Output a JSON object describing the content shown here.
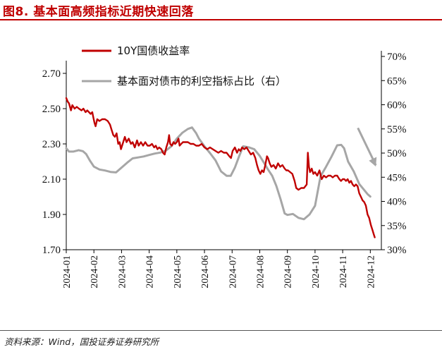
{
  "figure": {
    "title": "图8. 基本面高频指标近期快速回落",
    "source": "资料来源：Wind，国投证券证券研究所"
  },
  "colors": {
    "red": "#c00000",
    "gray": "#a6a6a6",
    "axis": "#000000"
  },
  "chart_data": {
    "type": "line",
    "xlabel": "",
    "ylabel": "",
    "x_categories": [
      "2024-01",
      "2024-02",
      "2024-03",
      "2024-04",
      "2024-05",
      "2024-06",
      "2024-07",
      "2024-08",
      "2024-09",
      "2024-10",
      "2024-11",
      "2024-12"
    ],
    "x_range": [
      0,
      11.4
    ],
    "y_left": {
      "range": [
        1.7,
        2.7
      ],
      "ticks": [
        "1.70",
        "1.90",
        "2.10",
        "2.30",
        "2.50",
        "2.70"
      ],
      "tick_values": [
        1.7,
        1.9,
        2.1,
        2.3,
        2.5,
        2.7
      ]
    },
    "y_right": {
      "range": [
        30,
        70
      ],
      "ticks": [
        "30%",
        "35%",
        "40%",
        "45%",
        "50%",
        "55%",
        "60%",
        "65%",
        "70%"
      ],
      "tick_values": [
        30,
        35,
        40,
        45,
        50,
        55,
        60,
        65,
        70
      ]
    },
    "legend": {
      "placement": "top-left"
    },
    "series": [
      {
        "name": "10Y国债收益率",
        "axis": "left",
        "color": "#c00000",
        "points": [
          [
            0.0,
            2.56
          ],
          [
            0.05,
            2.54
          ],
          [
            0.1,
            2.53
          ],
          [
            0.17,
            2.49
          ],
          [
            0.22,
            2.52
          ],
          [
            0.3,
            2.5
          ],
          [
            0.38,
            2.51
          ],
          [
            0.46,
            2.5
          ],
          [
            0.55,
            2.49
          ],
          [
            0.62,
            2.5
          ],
          [
            0.7,
            2.48
          ],
          [
            0.76,
            2.49
          ],
          [
            0.82,
            2.48
          ],
          [
            0.88,
            2.47
          ],
          [
            0.94,
            2.48
          ],
          [
            0.98,
            2.45
          ],
          [
            1.02,
            2.42
          ],
          [
            1.06,
            2.4
          ],
          [
            1.12,
            2.44
          ],
          [
            1.2,
            2.43
          ],
          [
            1.3,
            2.44
          ],
          [
            1.4,
            2.44
          ],
          [
            1.5,
            2.43
          ],
          [
            1.58,
            2.41
          ],
          [
            1.64,
            2.38
          ],
          [
            1.7,
            2.35
          ],
          [
            1.76,
            2.34
          ],
          [
            1.82,
            2.36
          ],
          [
            1.88,
            2.3
          ],
          [
            1.93,
            2.31
          ],
          [
            1.98,
            2.27
          ],
          [
            2.04,
            2.3
          ],
          [
            2.12,
            2.34
          ],
          [
            2.18,
            2.31
          ],
          [
            2.26,
            2.33
          ],
          [
            2.34,
            2.3
          ],
          [
            2.4,
            2.31
          ],
          [
            2.48,
            2.28
          ],
          [
            2.56,
            2.32
          ],
          [
            2.62,
            2.29
          ],
          [
            2.7,
            2.31
          ],
          [
            2.78,
            2.29
          ],
          [
            2.86,
            2.31
          ],
          [
            2.94,
            2.29
          ],
          [
            3.02,
            2.29
          ],
          [
            3.1,
            2.3
          ],
          [
            3.18,
            2.28
          ],
          [
            3.24,
            2.29
          ],
          [
            3.3,
            2.27
          ],
          [
            3.36,
            2.28
          ],
          [
            3.44,
            2.27
          ],
          [
            3.5,
            2.25
          ],
          [
            3.56,
            2.24
          ],
          [
            3.62,
            2.28
          ],
          [
            3.68,
            2.31
          ],
          [
            3.72,
            2.35
          ],
          [
            3.76,
            2.3
          ],
          [
            3.82,
            2.29
          ],
          [
            3.88,
            2.31
          ],
          [
            3.94,
            2.3
          ],
          [
            4.0,
            2.31
          ],
          [
            4.06,
            2.33
          ],
          [
            4.1,
            2.29
          ],
          [
            4.16,
            2.3
          ],
          [
            4.22,
            2.31
          ],
          [
            4.3,
            2.31
          ],
          [
            4.4,
            2.31
          ],
          [
            4.5,
            2.3
          ],
          [
            4.6,
            2.3
          ],
          [
            4.7,
            2.29
          ],
          [
            4.8,
            2.29
          ],
          [
            4.9,
            2.3
          ],
          [
            5.0,
            2.28
          ],
          [
            5.1,
            2.27
          ],
          [
            5.2,
            2.28
          ],
          [
            5.3,
            2.27
          ],
          [
            5.4,
            2.26
          ],
          [
            5.5,
            2.25
          ],
          [
            5.6,
            2.26
          ],
          [
            5.7,
            2.25
          ],
          [
            5.8,
            2.25
          ],
          [
            5.9,
            2.23
          ],
          [
            5.96,
            2.22
          ],
          [
            6.02,
            2.26
          ],
          [
            6.1,
            2.28
          ],
          [
            6.18,
            2.25
          ],
          [
            6.24,
            2.27
          ],
          [
            6.3,
            2.26
          ],
          [
            6.36,
            2.28
          ],
          [
            6.44,
            2.27
          ],
          [
            6.52,
            2.28
          ],
          [
            6.6,
            2.26
          ],
          [
            6.68,
            2.24
          ],
          [
            6.76,
            2.25
          ],
          [
            6.84,
            2.22
          ],
          [
            6.9,
            2.18
          ],
          [
            6.96,
            2.15
          ],
          [
            7.02,
            2.13
          ],
          [
            7.08,
            2.15
          ],
          [
            7.14,
            2.14
          ],
          [
            7.2,
            2.18
          ],
          [
            7.26,
            2.23
          ],
          [
            7.3,
            2.22
          ],
          [
            7.36,
            2.19
          ],
          [
            7.42,
            2.17
          ],
          [
            7.5,
            2.18
          ],
          [
            7.58,
            2.16
          ],
          [
            7.66,
            2.19
          ],
          [
            7.74,
            2.17
          ],
          [
            7.82,
            2.18
          ],
          [
            7.9,
            2.16
          ],
          [
            7.96,
            2.15
          ],
          [
            8.02,
            2.15
          ],
          [
            8.1,
            2.14
          ],
          [
            8.18,
            2.13
          ],
          [
            8.26,
            2.09
          ],
          [
            8.32,
            2.05
          ],
          [
            8.4,
            2.04
          ],
          [
            8.5,
            2.05
          ],
          [
            8.6,
            2.05
          ],
          [
            8.7,
            2.07
          ],
          [
            8.74,
            2.25
          ],
          [
            8.78,
            2.17
          ],
          [
            8.82,
            2.14
          ],
          [
            8.88,
            2.16
          ],
          [
            8.94,
            2.13
          ],
          [
            9.0,
            2.14
          ],
          [
            9.08,
            2.12
          ],
          [
            9.16,
            2.15
          ],
          [
            9.24,
            2.1
          ],
          [
            9.32,
            2.12
          ],
          [
            9.4,
            2.11
          ],
          [
            9.48,
            2.12
          ],
          [
            9.56,
            2.12
          ],
          [
            9.64,
            2.11
          ],
          [
            9.72,
            2.12
          ],
          [
            9.8,
            2.12
          ],
          [
            9.88,
            2.1
          ],
          [
            9.94,
            2.09
          ],
          [
            10.0,
            2.1
          ],
          [
            10.06,
            2.1
          ],
          [
            10.12,
            2.09
          ],
          [
            10.18,
            2.1
          ],
          [
            10.24,
            2.08
          ],
          [
            10.3,
            2.09
          ],
          [
            10.36,
            2.07
          ],
          [
            10.42,
            2.06
          ],
          [
            10.48,
            2.07
          ],
          [
            10.54,
            2.06
          ],
          [
            10.6,
            2.02
          ],
          [
            10.66,
            2.0
          ],
          [
            10.72,
            1.98
          ],
          [
            10.78,
            1.97
          ],
          [
            10.84,
            1.95
          ],
          [
            10.9,
            1.9
          ],
          [
            10.96,
            1.88
          ],
          [
            11.02,
            1.84
          ],
          [
            11.08,
            1.81
          ],
          [
            11.12,
            1.79
          ],
          [
            11.16,
            1.77
          ]
        ]
      },
      {
        "name": "基本面对债市的利空指标占比（右）",
        "axis": "right",
        "color": "#a6a6a6",
        "points": [
          [
            0.0,
            51.0
          ],
          [
            0.1,
            50.3
          ],
          [
            0.25,
            50.3
          ],
          [
            0.45,
            50.6
          ],
          [
            0.6,
            50.4
          ],
          [
            0.72,
            49.8
          ],
          [
            0.85,
            48.5
          ],
          [
            1.0,
            47.2
          ],
          [
            1.2,
            46.6
          ],
          [
            1.4,
            46.4
          ],
          [
            1.6,
            46.1
          ],
          [
            1.8,
            46.0
          ],
          [
            2.0,
            47.0
          ],
          [
            2.2,
            48.0
          ],
          [
            2.4,
            48.9
          ],
          [
            2.6,
            49.1
          ],
          [
            2.8,
            49.3
          ],
          [
            3.0,
            49.6
          ],
          [
            3.2,
            49.9
          ],
          [
            3.4,
            50.1
          ],
          [
            3.6,
            50.5
          ],
          [
            3.8,
            51.4
          ],
          [
            4.0,
            53.0
          ],
          [
            4.2,
            54.2
          ],
          [
            4.4,
            55.0
          ],
          [
            4.55,
            55.3
          ],
          [
            4.7,
            54.1
          ],
          [
            4.8,
            53.0
          ],
          [
            5.0,
            51.4
          ],
          [
            5.2,
            50.0
          ],
          [
            5.4,
            48.5
          ],
          [
            5.6,
            46.2
          ],
          [
            5.8,
            45.3
          ],
          [
            5.95,
            45.3
          ],
          [
            6.1,
            47.0
          ],
          [
            6.25,
            49.3
          ],
          [
            6.4,
            51.4
          ],
          [
            6.6,
            51.2
          ],
          [
            6.8,
            50.8
          ],
          [
            7.0,
            49.4
          ],
          [
            7.15,
            48.0
          ],
          [
            7.3,
            46.6
          ],
          [
            7.45,
            45.3
          ],
          [
            7.6,
            43.2
          ],
          [
            7.75,
            40.5
          ],
          [
            7.9,
            37.5
          ],
          [
            8.0,
            37.2
          ],
          [
            8.2,
            37.4
          ],
          [
            8.4,
            36.6
          ],
          [
            8.6,
            36.3
          ],
          [
            8.8,
            37.3
          ],
          [
            9.0,
            39.1
          ],
          [
            9.2,
            45.2
          ],
          [
            9.4,
            47.2
          ],
          [
            9.6,
            49.3
          ],
          [
            9.8,
            51.6
          ],
          [
            9.95,
            51.7
          ],
          [
            10.05,
            51.0
          ],
          [
            10.2,
            48.2
          ],
          [
            10.4,
            46.2
          ],
          [
            10.6,
            43.6
          ],
          [
            10.8,
            42.2
          ],
          [
            10.9,
            41.5
          ],
          [
            11.0,
            41.0
          ]
        ]
      }
    ],
    "annotations": [
      {
        "type": "arrow",
        "from": [
          10.55,
          55.2
        ],
        "to": [
          11.2,
          47.5
        ],
        "axis": "right",
        "color": "#a6a6a6"
      }
    ]
  }
}
